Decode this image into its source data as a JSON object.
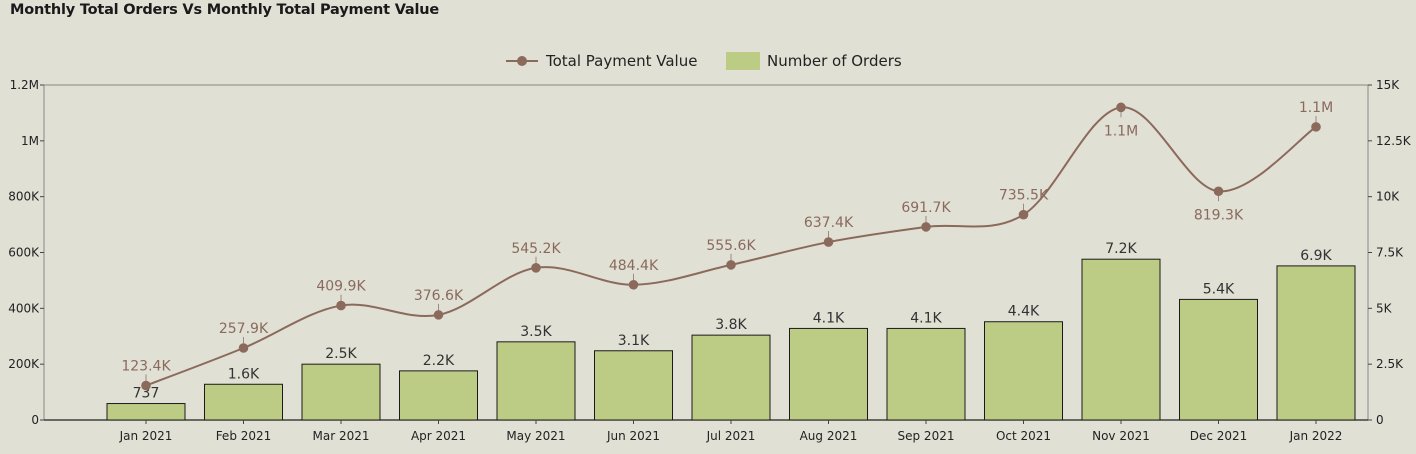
{
  "title": "Monthly Total Orders Vs Monthly Total Payment Value",
  "chart_data": {
    "type": "bar",
    "title": "Monthly Total Orders Vs Monthly Total Payment Value",
    "categories": [
      "Jan 2021",
      "Feb 2021",
      "Mar 2021",
      "Apr 2021",
      "May 2021",
      "Jun 2021",
      "Jul 2021",
      "Aug 2021",
      "Sep 2021",
      "Oct 2021",
      "Nov 2021",
      "Dec 2021",
      "Jan 2022"
    ],
    "legend_position": "top-center",
    "grid": false,
    "series": [
      {
        "name": "Total Payment Value",
        "chart_type": "line",
        "axis": "left",
        "color": "#8b6a5c",
        "values": [
          123400,
          257900,
          409900,
          376600,
          545200,
          484400,
          555600,
          637400,
          691700,
          735500,
          1120000,
          819300,
          1050000
        ],
        "labels": [
          "123.4K",
          "257.9K",
          "409.9K",
          "376.6K",
          "545.2K",
          "484.4K",
          "555.6K",
          "637.4K",
          "691.7K",
          "735.5K",
          "1.1M",
          "819.3K",
          "1.1M"
        ]
      },
      {
        "name": "Number of Orders",
        "chart_type": "bar",
        "axis": "right",
        "color": "#bccc84",
        "values": [
          737,
          1600,
          2500,
          2200,
          3500,
          3100,
          3800,
          4100,
          4100,
          4400,
          7200,
          5400,
          6900
        ],
        "labels": [
          "737",
          "1.6K",
          "2.5K",
          "2.2K",
          "3.5K",
          "3.1K",
          "3.8K",
          "4.1K",
          "4.1K",
          "4.4K",
          "7.2K",
          "5.4K",
          "6.9K"
        ]
      }
    ],
    "y_left": {
      "min": 0,
      "max": 1200000,
      "ticks": [
        0,
        200000,
        400000,
        600000,
        800000,
        1000000,
        1200000
      ],
      "tick_labels": [
        "0",
        "200K",
        "400K",
        "600K",
        "800K",
        "1M",
        "1.2M"
      ]
    },
    "y_right": {
      "min": 0,
      "max": 15000,
      "ticks": [
        0,
        2500,
        5000,
        7500,
        10000,
        12500,
        15000
      ],
      "tick_labels": [
        "0",
        "2.5K",
        "5K",
        "7.5K",
        "10K",
        "12.5K",
        "15K"
      ]
    }
  }
}
